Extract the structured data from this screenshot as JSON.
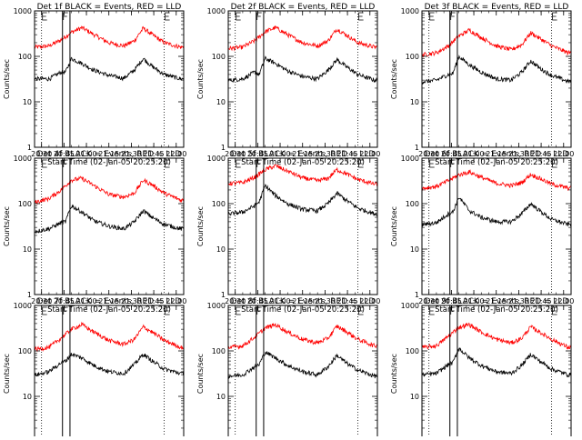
{
  "figure": {
    "layout": {
      "rows": 3,
      "cols": 3
    },
    "xlabel": "Start Time (02-Jan-05 20:25:20)",
    "ylabel": "Counts/sec",
    "x_tick_labels": [
      "20:30",
      "20:45",
      "21:00",
      "21:15",
      "21:30",
      "21:45",
      "22:00"
    ],
    "y_tick_labels": [
      "1",
      "10",
      "100",
      "1000"
    ],
    "series_colors": {
      "events": "#000000",
      "lld": "#ff0000"
    }
  },
  "chart_data": [
    {
      "type": "line",
      "title": "Det 1f BLACK = Events, RED = LLD",
      "ylim": [
        1,
        1000
      ],
      "yscale": "log",
      "xlim": [
        "20:25:20",
        "22:05"
      ],
      "markers": {
        "F_start": "20:44",
        "F_end": "20:49",
        "E_start": "20:30",
        "E_end": "21:52"
      },
      "series": [
        {
          "key": "lld",
          "x": [
            "20:27",
            "20:35",
            "20:43",
            "20:50",
            "20:57",
            "21:05",
            "21:15",
            "21:25",
            "21:32",
            "21:38",
            "21:44",
            "21:52",
            "22:03"
          ],
          "values": [
            160,
            170,
            230,
            340,
            430,
            300,
            200,
            170,
            220,
            420,
            300,
            200,
            160
          ]
        },
        {
          "key": "events",
          "x": [
            "20:27",
            "20:35",
            "20:43",
            "20:46",
            "20:50",
            "20:57",
            "21:05",
            "21:15",
            "21:25",
            "21:32",
            "21:38",
            "21:44",
            "21:52",
            "22:03"
          ],
          "values": [
            32,
            32,
            45,
            45,
            90,
            70,
            50,
            38,
            33,
            50,
            90,
            60,
            40,
            32
          ]
        }
      ]
    },
    {
      "type": "line",
      "title": "Det 2f BLACK = Events, RED = LLD",
      "ylim": [
        1,
        1000
      ],
      "yscale": "log",
      "xlim": [
        "20:25:20",
        "22:05"
      ],
      "markers": {
        "F_start": "20:44",
        "F_end": "20:49",
        "E_start": "20:30",
        "E_end": "21:52"
      },
      "series": [
        {
          "key": "lld",
          "x": [
            "20:27",
            "20:35",
            "20:43",
            "20:50",
            "20:57",
            "21:05",
            "21:15",
            "21:25",
            "21:32",
            "21:38",
            "21:44",
            "21:52",
            "22:03"
          ],
          "values": [
            150,
            160,
            220,
            350,
            430,
            300,
            200,
            170,
            220,
            400,
            300,
            200,
            160
          ]
        },
        {
          "key": "events",
          "x": [
            "20:27",
            "20:35",
            "20:43",
            "20:46",
            "20:50",
            "20:57",
            "21:05",
            "21:15",
            "21:25",
            "21:32",
            "21:38",
            "21:44",
            "21:52",
            "22:03"
          ],
          "values": [
            30,
            32,
            45,
            40,
            90,
            70,
            48,
            36,
            32,
            50,
            85,
            60,
            40,
            30
          ]
        }
      ]
    },
    {
      "type": "line",
      "title": "Det 3f BLACK = Events, RED = LLD",
      "ylim": [
        1,
        1000
      ],
      "yscale": "log",
      "xlim": [
        "20:25:20",
        "22:05"
      ],
      "markers": {
        "F_start": "20:44",
        "F_end": "20:49",
        "E_start": "20:30",
        "E_end": "21:52"
      },
      "series": [
        {
          "key": "lld",
          "x": [
            "20:27",
            "20:35",
            "20:43",
            "20:50",
            "20:57",
            "21:05",
            "21:15",
            "21:25",
            "21:32",
            "21:38",
            "21:44",
            "21:52",
            "22:03"
          ],
          "values": [
            110,
            120,
            170,
            280,
            380,
            260,
            170,
            140,
            180,
            330,
            250,
            170,
            120
          ]
        },
        {
          "key": "events",
          "x": [
            "20:27",
            "20:35",
            "20:43",
            "20:46",
            "20:50",
            "20:57",
            "21:05",
            "21:15",
            "21:25",
            "21:32",
            "21:38",
            "21:44",
            "21:52",
            "22:03"
          ],
          "values": [
            28,
            30,
            40,
            42,
            100,
            65,
            45,
            32,
            30,
            45,
            80,
            55,
            38,
            28
          ]
        }
      ]
    },
    {
      "type": "line",
      "title": "Det 4f BLACK = Events, RED = LLD",
      "ylim": [
        1,
        1000
      ],
      "yscale": "log",
      "xlim": [
        "20:25:20",
        "22:05"
      ],
      "markers": {
        "F_start": "20:44",
        "F_end": "20:49",
        "E_start": "20:30",
        "E_end": "21:52"
      },
      "series": [
        {
          "key": "lld",
          "x": [
            "20:27",
            "20:35",
            "20:43",
            "20:50",
            "20:57",
            "21:05",
            "21:15",
            "21:25",
            "21:32",
            "21:38",
            "21:44",
            "21:52",
            "22:03"
          ],
          "values": [
            110,
            130,
            200,
            330,
            360,
            250,
            160,
            140,
            170,
            330,
            260,
            170,
            120
          ]
        },
        {
          "key": "events",
          "x": [
            "20:27",
            "20:35",
            "20:43",
            "20:46",
            "20:50",
            "20:57",
            "21:05",
            "21:15",
            "21:25",
            "21:32",
            "21:38",
            "21:44",
            "21:52",
            "22:03"
          ],
          "values": [
            25,
            28,
            38,
            40,
            90,
            65,
            42,
            32,
            28,
            40,
            70,
            50,
            35,
            28
          ]
        }
      ]
    },
    {
      "type": "line",
      "title": "Det 5f BLACK = Events, RED = LLD",
      "ylim": [
        1,
        1000
      ],
      "yscale": "log",
      "xlim": [
        "20:25:20",
        "22:05"
      ],
      "markers": {
        "F_start": "20:44",
        "F_end": "20:49",
        "E_start": "20:30",
        "E_end": "21:52"
      },
      "series": [
        {
          "key": "lld",
          "x": [
            "20:27",
            "20:35",
            "20:43",
            "20:50",
            "20:57",
            "21:05",
            "21:15",
            "21:25",
            "21:32",
            "21:38",
            "21:44",
            "21:52",
            "22:03"
          ],
          "values": [
            280,
            290,
            380,
            560,
            680,
            520,
            370,
            320,
            360,
            560,
            460,
            340,
            270
          ]
        },
        {
          "key": "events",
          "x": [
            "20:27",
            "20:35",
            "20:43",
            "20:46",
            "20:50",
            "20:57",
            "21:05",
            "21:15",
            "21:25",
            "21:32",
            "21:38",
            "21:44",
            "21:52",
            "22:03"
          ],
          "values": [
            60,
            65,
            90,
            110,
            250,
            150,
            100,
            75,
            70,
            100,
            170,
            120,
            80,
            60
          ]
        }
      ]
    },
    {
      "type": "line",
      "title": "Det 6f BLACK = Events, RED = LLD",
      "ylim": [
        1,
        1000
      ],
      "yscale": "log",
      "xlim": [
        "20:25:20",
        "22:05"
      ],
      "markers": {
        "F_start": "20:44",
        "F_end": "20:49",
        "E_start": "20:30",
        "E_end": "21:52"
      },
      "series": [
        {
          "key": "lld",
          "x": [
            "20:27",
            "20:35",
            "20:43",
            "20:50",
            "20:57",
            "21:05",
            "21:15",
            "21:25",
            "21:32",
            "21:38",
            "21:44",
            "21:52",
            "22:03"
          ],
          "values": [
            220,
            240,
            320,
            430,
            500,
            380,
            280,
            250,
            290,
            440,
            360,
            270,
            220
          ]
        },
        {
          "key": "events",
          "x": [
            "20:27",
            "20:35",
            "20:43",
            "20:46",
            "20:50",
            "20:57",
            "21:05",
            "21:15",
            "21:25",
            "21:32",
            "21:38",
            "21:44",
            "21:52",
            "22:03"
          ],
          "values": [
            35,
            38,
            60,
            65,
            140,
            70,
            50,
            40,
            40,
            60,
            100,
            70,
            45,
            35
          ]
        }
      ]
    },
    {
      "type": "line",
      "title": "Det 7f BLACK = Events, RED = LLD",
      "ylim": [
        1,
        1000
      ],
      "yscale": "log",
      "xlim": [
        "20:25:20",
        "22:05"
      ],
      "markers": {
        "F_start": "20:44",
        "F_end": "20:49",
        "E_start": "20:30",
        "E_end": "21:52"
      },
      "series": [
        {
          "key": "lld",
          "x": [
            "20:27",
            "20:35",
            "20:43",
            "20:50",
            "20:57",
            "21:05",
            "21:15",
            "21:25",
            "21:32",
            "21:38",
            "21:44",
            "21:52",
            "22:03"
          ],
          "values": [
            110,
            120,
            190,
            300,
            380,
            260,
            170,
            140,
            180,
            340,
            260,
            170,
            120
          ]
        },
        {
          "key": "events",
          "x": [
            "20:27",
            "20:35",
            "20:43",
            "20:46",
            "20:50",
            "20:57",
            "21:05",
            "21:15",
            "21:25",
            "21:32",
            "21:38",
            "21:44",
            "21:52",
            "22:03"
          ],
          "values": [
            30,
            35,
            55,
            60,
            85,
            70,
            48,
            35,
            32,
            50,
            85,
            60,
            40,
            32
          ]
        }
      ]
    },
    {
      "type": "line",
      "title": "Det 8f BLACK = Events, RED = LLD",
      "ylim": [
        1,
        1000
      ],
      "yscale": "log",
      "xlim": [
        "20:25:20",
        "22:05"
      ],
      "markers": {
        "F_start": "20:44",
        "F_end": "20:49",
        "E_start": "20:30",
        "E_end": "21:52"
      },
      "series": [
        {
          "key": "lld",
          "x": [
            "20:27",
            "20:35",
            "20:43",
            "20:50",
            "20:57",
            "21:05",
            "21:15",
            "21:25",
            "21:32",
            "21:38",
            "21:44",
            "21:52",
            "22:03"
          ],
          "values": [
            120,
            130,
            200,
            320,
            380,
            260,
            180,
            150,
            190,
            350,
            270,
            180,
            130
          ]
        },
        {
          "key": "events",
          "x": [
            "20:27",
            "20:35",
            "20:43",
            "20:46",
            "20:50",
            "20:57",
            "21:05",
            "21:15",
            "21:25",
            "21:32",
            "21:38",
            "21:44",
            "21:52",
            "22:03"
          ],
          "values": [
            28,
            30,
            45,
            50,
            95,
            70,
            48,
            35,
            30,
            45,
            80,
            55,
            38,
            28
          ]
        }
      ]
    },
    {
      "type": "line",
      "title": "Det 9f BLACK = Events, RED = LLD",
      "ylim": [
        1,
        1000
      ],
      "yscale": "log",
      "xlim": [
        "20:25:20",
        "22:05"
      ],
      "markers": {
        "F_start": "20:44",
        "F_end": "20:49",
        "E_start": "20:30",
        "E_end": "21:52"
      },
      "series": [
        {
          "key": "lld",
          "x": [
            "20:27",
            "20:35",
            "20:43",
            "20:50",
            "20:57",
            "21:05",
            "21:15",
            "21:25",
            "21:32",
            "21:38",
            "21:44",
            "21:52",
            "22:03"
          ],
          "values": [
            120,
            130,
            210,
            330,
            380,
            260,
            180,
            150,
            190,
            340,
            260,
            180,
            120
          ]
        },
        {
          "key": "events",
          "x": [
            "20:27",
            "20:35",
            "20:43",
            "20:46",
            "20:50",
            "20:57",
            "21:05",
            "21:15",
            "21:25",
            "21:32",
            "21:38",
            "21:44",
            "21:52",
            "22:03"
          ],
          "values": [
            30,
            32,
            50,
            55,
            115,
            70,
            48,
            35,
            32,
            48,
            85,
            60,
            40,
            30
          ]
        }
      ]
    }
  ]
}
